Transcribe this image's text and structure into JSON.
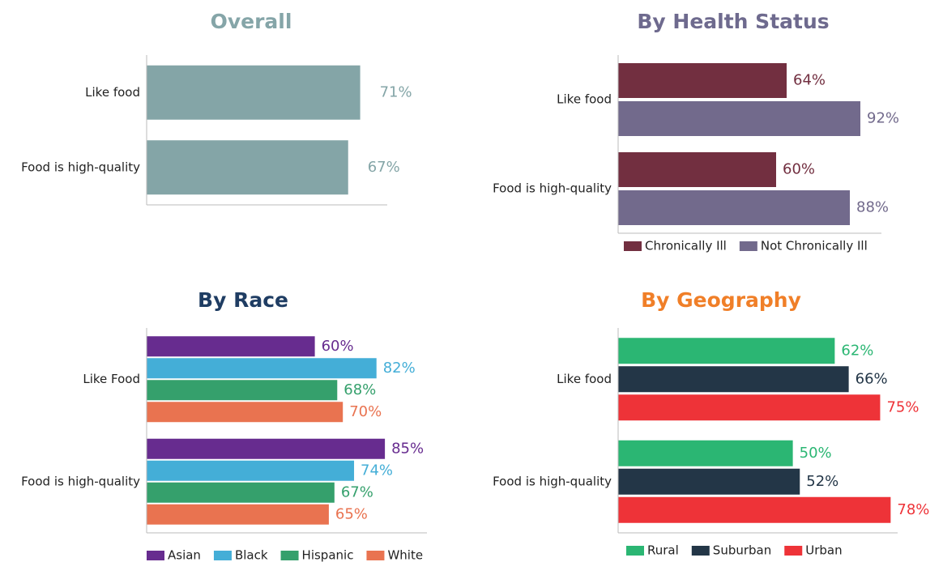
{
  "chart_data": [
    {
      "type": "bar",
      "orientation": "horizontal",
      "title": "Overall",
      "title_color": "#85a5a8",
      "categories": [
        "Like food",
        "Food is high-quality"
      ],
      "xlim": [
        0,
        80
      ],
      "series": [
        {
          "color": "#84a5a7",
          "values": [
            71,
            67
          ],
          "value_labels": [
            "71%",
            "67%"
          ]
        }
      ]
    },
    {
      "type": "bar",
      "orientation": "horizontal",
      "title": "By Health Status",
      "title_color": "#6e6a8e",
      "categories": [
        "Like food",
        "Food is high-quality"
      ],
      "xlim": [
        0,
        100
      ],
      "series": [
        {
          "name": "Chronically Ill",
          "color": "#722f40",
          "values": [
            64,
            60
          ],
          "value_labels": [
            "64%",
            "60%"
          ]
        },
        {
          "name": "Not Chronically Ill",
          "color": "#726a8c",
          "values": [
            92,
            88
          ],
          "value_labels": [
            "92%",
            "88%"
          ]
        }
      ]
    },
    {
      "type": "bar",
      "orientation": "horizontal",
      "title": "By Race",
      "title_color": "#1f3d63",
      "categories": [
        "Like Food",
        "Food is high-quality"
      ],
      "xlim": [
        0,
        100
      ],
      "series": [
        {
          "name": "Asian",
          "color": "#672c8f",
          "values": [
            60,
            85
          ],
          "value_labels": [
            "60%",
            "85%"
          ]
        },
        {
          "name": "Black",
          "color": "#44aed7",
          "values": [
            82,
            74
          ],
          "value_labels": [
            "82%",
            "74%"
          ]
        },
        {
          "name": "Hispanic",
          "color": "#35a06c",
          "values": [
            68,
            67
          ],
          "value_labels": [
            "68%",
            "67%"
          ]
        },
        {
          "name": "White",
          "color": "#e97350",
          "values": [
            70,
            65
          ],
          "value_labels": [
            "70%",
            "65%"
          ]
        }
      ]
    },
    {
      "type": "bar",
      "orientation": "horizontal",
      "title": "By Geography",
      "title_color": "#f07f28",
      "categories": [
        "Like food",
        "Food is high-quality"
      ],
      "xlim": [
        0,
        80
      ],
      "series": [
        {
          "name": "Rural",
          "color": "#2bb673",
          "values": [
            62,
            50
          ],
          "value_labels": [
            "62%",
            "50%"
          ]
        },
        {
          "name": "Suburban",
          "color": "#233647",
          "values": [
            66,
            52
          ],
          "value_labels": [
            "66%",
            "52%"
          ]
        },
        {
          "name": "Urban",
          "color": "#ee3338",
          "values": [
            75,
            78
          ],
          "value_labels": [
            "75%",
            "78%"
          ]
        }
      ]
    }
  ]
}
